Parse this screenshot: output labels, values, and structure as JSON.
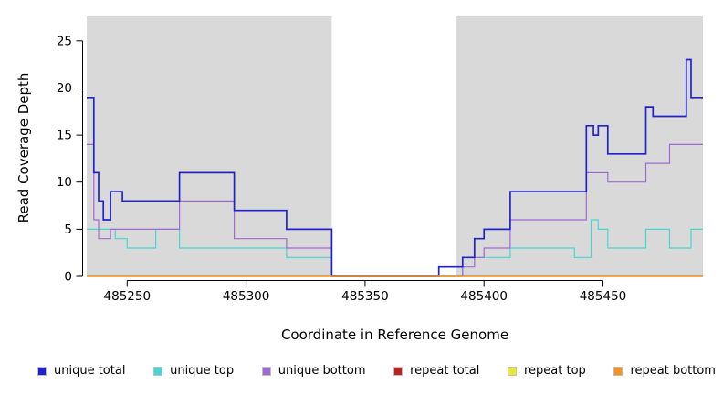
{
  "chart_data": {
    "type": "line",
    "subtype": "step",
    "title": "",
    "xlabel": "Coordinate in Reference Genome",
    "ylabel": "Read Coverage Depth",
    "xlim": [
      485233,
      485492
    ],
    "ylim": [
      0,
      27.6
    ],
    "xticks": [
      "485250",
      "485300",
      "485350",
      "485400",
      "485450"
    ],
    "xtick_values": [
      485250,
      485300,
      485350,
      485400,
      485450
    ],
    "yticks": [
      "0",
      "5",
      "10",
      "15",
      "20",
      "25"
    ],
    "ytick_values": [
      0,
      5,
      10,
      15,
      20,
      25
    ],
    "grid": false,
    "legend_position": "bottom",
    "background_color": "#ffffff",
    "shaded_regions": {
      "color": "#d9d9d9",
      "ranges": [
        [
          485233,
          485336
        ],
        [
          485388,
          485492
        ]
      ]
    },
    "series": [
      {
        "name": "unique total",
        "color": "#2222cc",
        "points": [
          [
            485233,
            19
          ],
          [
            485236,
            11
          ],
          [
            485238,
            8
          ],
          [
            485240,
            6
          ],
          [
            485243,
            9
          ],
          [
            485248,
            8
          ],
          [
            485272,
            11
          ],
          [
            485295,
            7
          ],
          [
            485317,
            5
          ],
          [
            485336,
            0
          ],
          [
            485381,
            1
          ],
          [
            485391,
            2
          ],
          [
            485396,
            4
          ],
          [
            485400,
            5
          ],
          [
            485411,
            9
          ],
          [
            485443,
            16
          ],
          [
            485446,
            15
          ],
          [
            485448,
            16
          ],
          [
            485452,
            13
          ],
          [
            485468,
            18
          ],
          [
            485471,
            17
          ],
          [
            485485,
            23
          ],
          [
            485487,
            19
          ]
        ]
      },
      {
        "name": "unique top",
        "color": "#45d8d0",
        "points": [
          [
            485233,
            5
          ],
          [
            485245,
            4
          ],
          [
            485250,
            3
          ],
          [
            485262,
            5
          ],
          [
            485272,
            3
          ],
          [
            485317,
            2
          ],
          [
            485336,
            0
          ],
          [
            485391,
            2
          ],
          [
            485411,
            3
          ],
          [
            485438,
            2
          ],
          [
            485445,
            6
          ],
          [
            485448,
            5
          ],
          [
            485452,
            3
          ],
          [
            485468,
            5
          ],
          [
            485478,
            3
          ],
          [
            485487,
            5
          ]
        ]
      },
      {
        "name": "unique bottom",
        "color": "#a06ad4",
        "points": [
          [
            485233,
            14
          ],
          [
            485236,
            6
          ],
          [
            485238,
            4
          ],
          [
            485243,
            5
          ],
          [
            485272,
            8
          ],
          [
            485295,
            4
          ],
          [
            485317,
            3
          ],
          [
            485336,
            0
          ],
          [
            485391,
            1
          ],
          [
            485396,
            2
          ],
          [
            485400,
            3
          ],
          [
            485411,
            6
          ],
          [
            485443,
            11
          ],
          [
            485452,
            10
          ],
          [
            485468,
            12
          ],
          [
            485478,
            14
          ]
        ]
      },
      {
        "name": "repeat total",
        "color": "#bb2222",
        "points": [
          [
            485233,
            0
          ]
        ]
      },
      {
        "name": "repeat top",
        "color": "#ebe832",
        "points": [
          [
            485233,
            0
          ]
        ]
      },
      {
        "name": "repeat bottom",
        "color": "#f5941d",
        "points": [
          [
            485233,
            0
          ]
        ]
      }
    ]
  }
}
